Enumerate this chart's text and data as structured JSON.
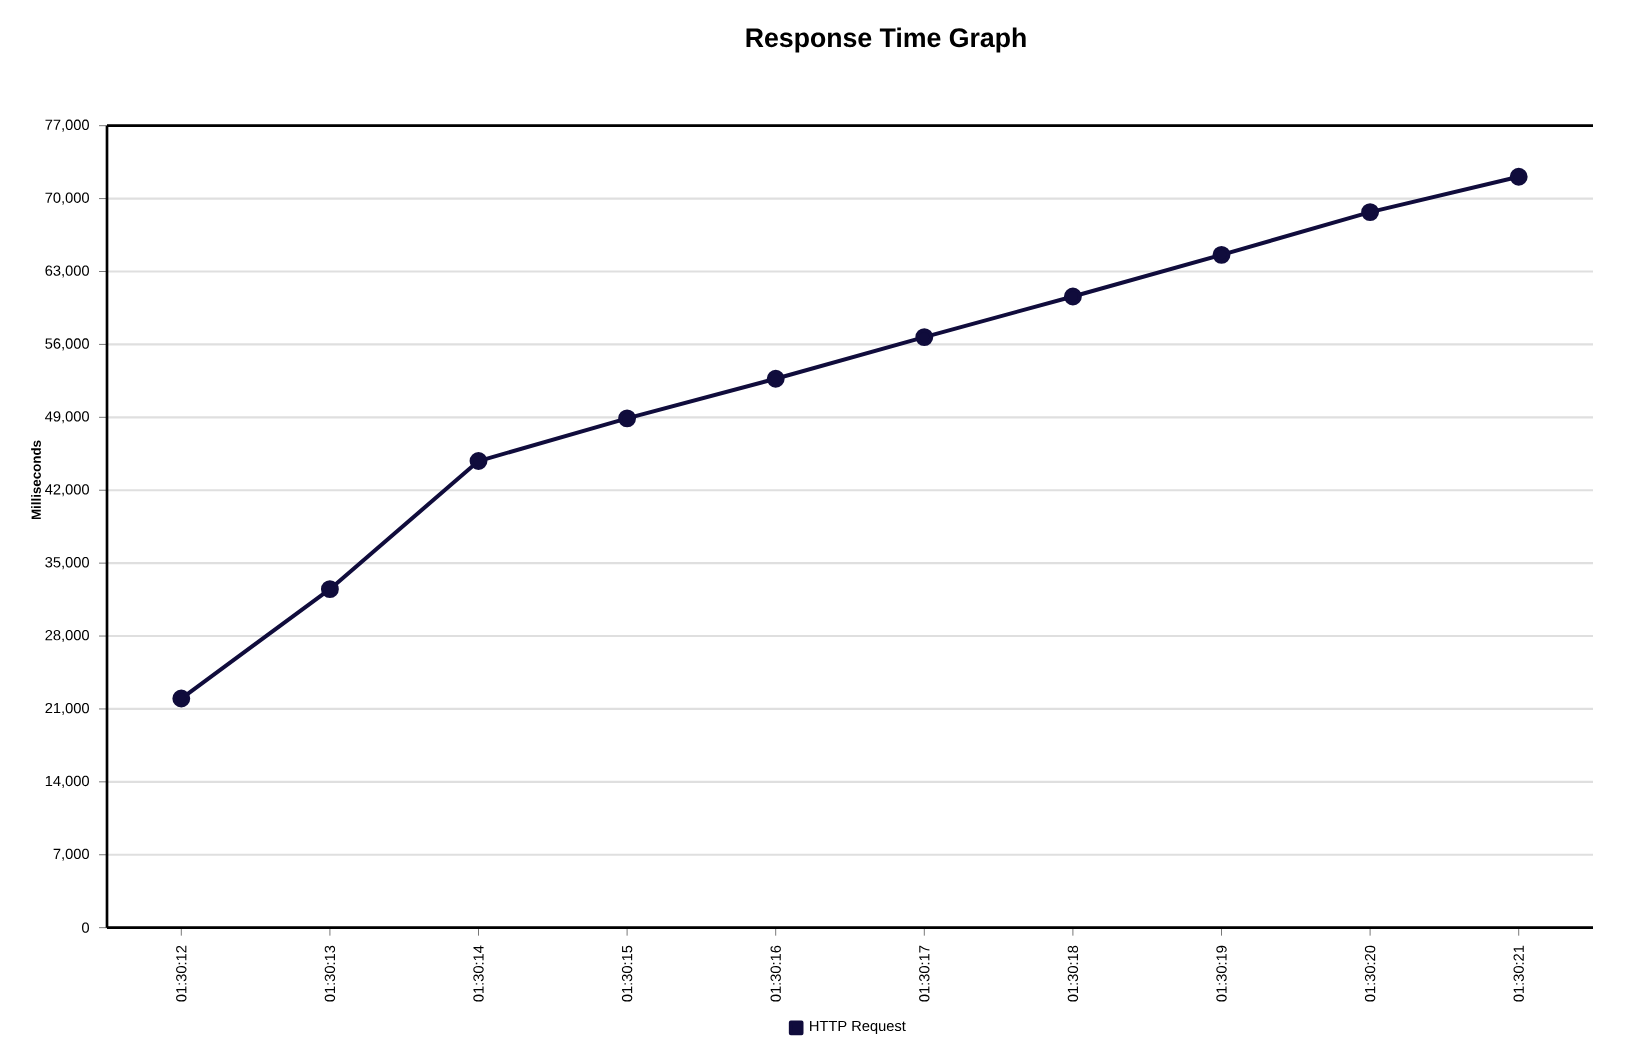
{
  "chart_data": {
    "type": "line",
    "title": "Response Time Graph",
    "ylabel": "Milliseconds",
    "categories": [
      "01:30:12",
      "01:30:13",
      "01:30:14",
      "01:30:15",
      "01:30:16",
      "01:30:17",
      "01:30:18",
      "01:30:19",
      "01:30:20",
      "01:30:21"
    ],
    "series": [
      {
        "name": "HTTP Request",
        "color": "#100c3c",
        "values": [
          22000,
          32500,
          44800,
          48900,
          52700,
          56700,
          60600,
          64600,
          68700,
          72100
        ]
      }
    ],
    "ylim": [
      0,
      77000
    ],
    "yticks": [
      {
        "value": 0,
        "label": "0"
      },
      {
        "value": 7000,
        "label": "7,000"
      },
      {
        "value": 14000,
        "label": "14,000"
      },
      {
        "value": 21000,
        "label": "21,000"
      },
      {
        "value": 28000,
        "label": "28,000"
      },
      {
        "value": 35000,
        "label": "35,000"
      },
      {
        "value": 42000,
        "label": "42,000"
      },
      {
        "value": 49000,
        "label": "49,000"
      },
      {
        "value": 56000,
        "label": "56,000"
      },
      {
        "value": 63000,
        "label": "63,000"
      },
      {
        "value": 70000,
        "label": "70,000"
      },
      {
        "value": 77000,
        "label": "77,000"
      }
    ],
    "grid": "y",
    "legend": "bottom",
    "marker": "circle",
    "line_style": "solid"
  }
}
